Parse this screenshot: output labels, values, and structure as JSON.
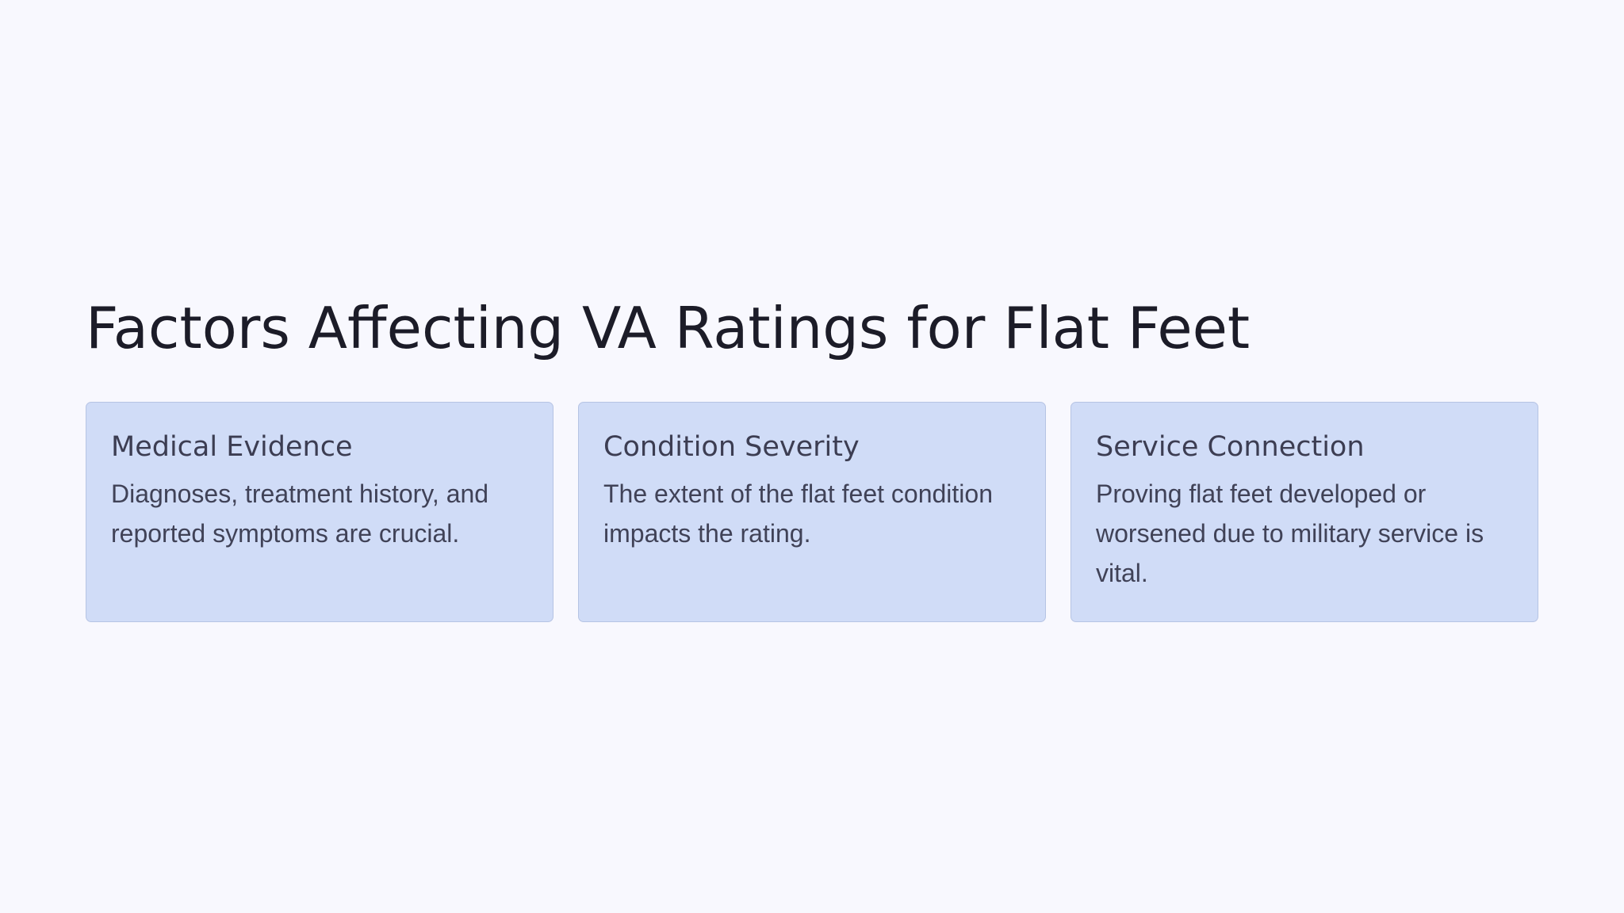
{
  "page": {
    "title": "Factors Affecting VA Ratings for Flat Feet"
  },
  "cards": [
    {
      "title": "Medical Evidence",
      "body": "Diagnoses, treatment history, and reported symptoms are crucial."
    },
    {
      "title": "Condition Severity",
      "body": "The extent of the flat feet condition impacts the rating."
    },
    {
      "title": "Service Connection",
      "body": "Proving flat feet developed or worsened due to military service is vital."
    }
  ],
  "colors": {
    "background": "#f8f8fe",
    "card_background": "#d0dcf7",
    "card_border": "#b6c4e4",
    "title_text": "#1c1c28",
    "card_text": "#3c3d52"
  }
}
